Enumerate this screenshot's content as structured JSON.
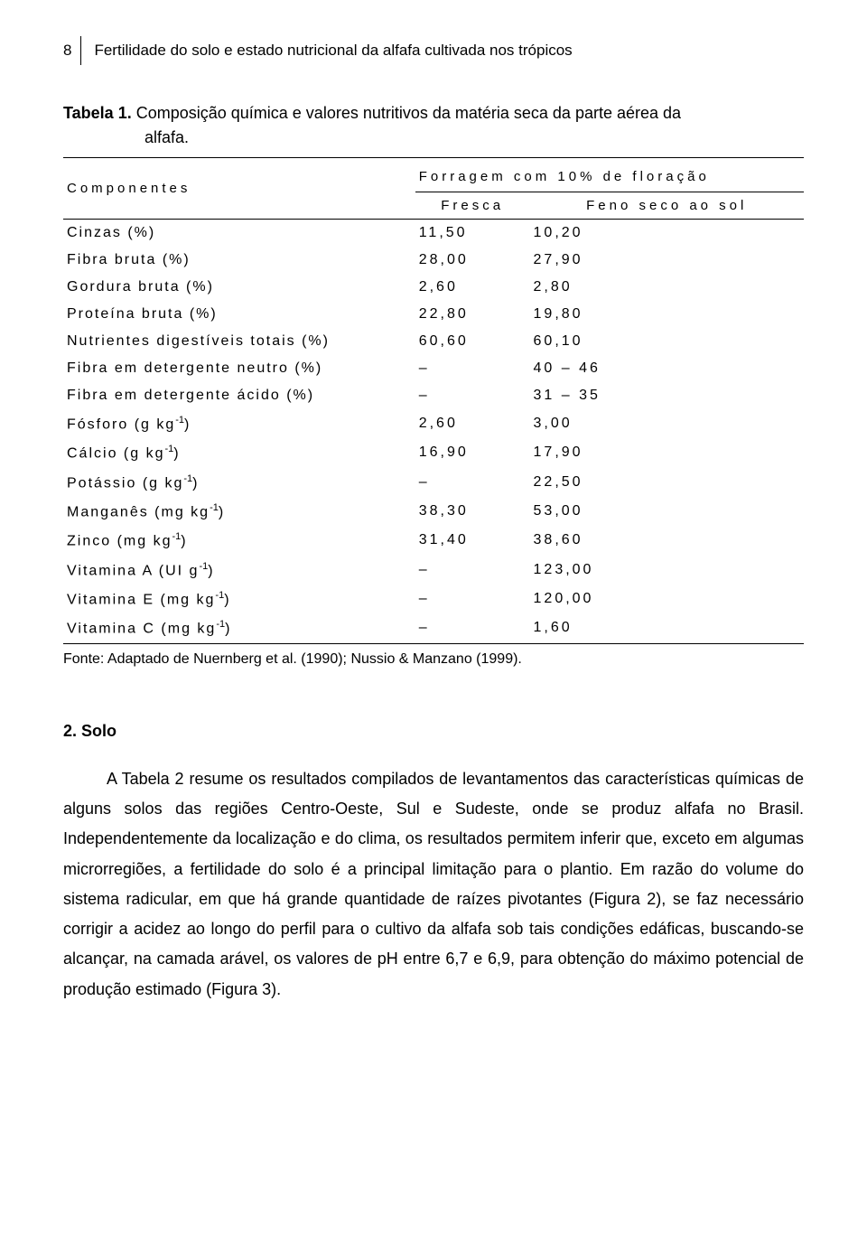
{
  "page_number": "8",
  "header_title": "Fertilidade do solo e estado nutricional da alfafa cultivada nos trópicos",
  "table_caption_label": "Tabela 1.",
  "table_caption_text_line1": "Composição química e valores nutritivos da matéria seca da parte aérea da",
  "table_caption_text_line2": "alfafa.",
  "headers": {
    "components": "Componentes",
    "span": "Forragem com 10% de floração",
    "col1": "Fresca",
    "col2": "Feno seco ao sol"
  },
  "rows": [
    {
      "label": "Cinzas (%)",
      "sup": "",
      "c1": "11,50",
      "c2": "10,20"
    },
    {
      "label": "Fibra bruta (%)",
      "sup": "",
      "c1": "28,00",
      "c2": "27,90"
    },
    {
      "label": "Gordura bruta (%)",
      "sup": "",
      "c1": "2,60",
      "c2": "2,80"
    },
    {
      "label": "Proteína bruta (%)",
      "sup": "",
      "c1": "22,80",
      "c2": "19,80"
    },
    {
      "label": "Nutrientes digestíveis totais (%)",
      "sup": "",
      "c1": "60,60",
      "c2": "60,10"
    },
    {
      "label": "Fibra em detergente neutro (%)",
      "sup": "",
      "c1": "–",
      "c2": "40 – 46"
    },
    {
      "label": "Fibra em detergente ácido (%)",
      "sup": "",
      "c1": "–",
      "c2": "31 – 35"
    },
    {
      "label": "Fósforo (g kg",
      "sup": "-1",
      "tail": ")",
      "c1": "2,60",
      "c2": "3,00"
    },
    {
      "label": "Cálcio (g kg",
      "sup": "-1",
      "tail": ")",
      "c1": "16,90",
      "c2": "17,90"
    },
    {
      "label": "Potássio (g kg",
      "sup": "-1",
      "tail": ")",
      "c1": "–",
      "c2": "22,50"
    },
    {
      "label": "Manganês (mg kg",
      "sup": "-1",
      "tail": ")",
      "c1": "38,30",
      "c2": "53,00"
    },
    {
      "label": "Zinco (mg kg",
      "sup": "-1",
      "tail": ")",
      "c1": "31,40",
      "c2": "38,60"
    },
    {
      "label": "Vitamina A (UI g",
      "sup": "-1",
      "tail": ")",
      "c1": "–",
      "c2": "123,00"
    },
    {
      "label": "Vitamina E (mg kg",
      "sup": "-1",
      "tail": ")",
      "c1": "–",
      "c2": "120,00"
    },
    {
      "label": "Vitamina C (mg kg",
      "sup": "-1",
      "tail": ")",
      "c1": "–",
      "c2": "1,60"
    }
  ],
  "source": "Fonte: Adaptado de Nuernberg et al. (1990); Nussio & Manzano (1999).",
  "section_title": "2. Solo",
  "body": "A Tabela 2 resume os resultados compilados de levantamentos das características químicas de alguns solos das regiões Centro-Oeste, Sul e Sudeste, onde se produz alfafa no Brasil. Independentemente da localização e do clima, os resultados permitem inferir que, exceto em algumas microrregiões, a fertilidade do solo é a principal limitação para o plantio. Em razão do volume do sistema radicular, em que há grande quantidade de raízes pivotantes (Figura 2), se faz necessário corrigir a acidez ao longo do perfil para o cultivo da alfafa sob tais condições edáficas, buscando-se alcançar, na camada arável, os valores de pH entre 6,7 e 6,9, para obtenção do máximo potencial de produção estimado (Figura 3)."
}
